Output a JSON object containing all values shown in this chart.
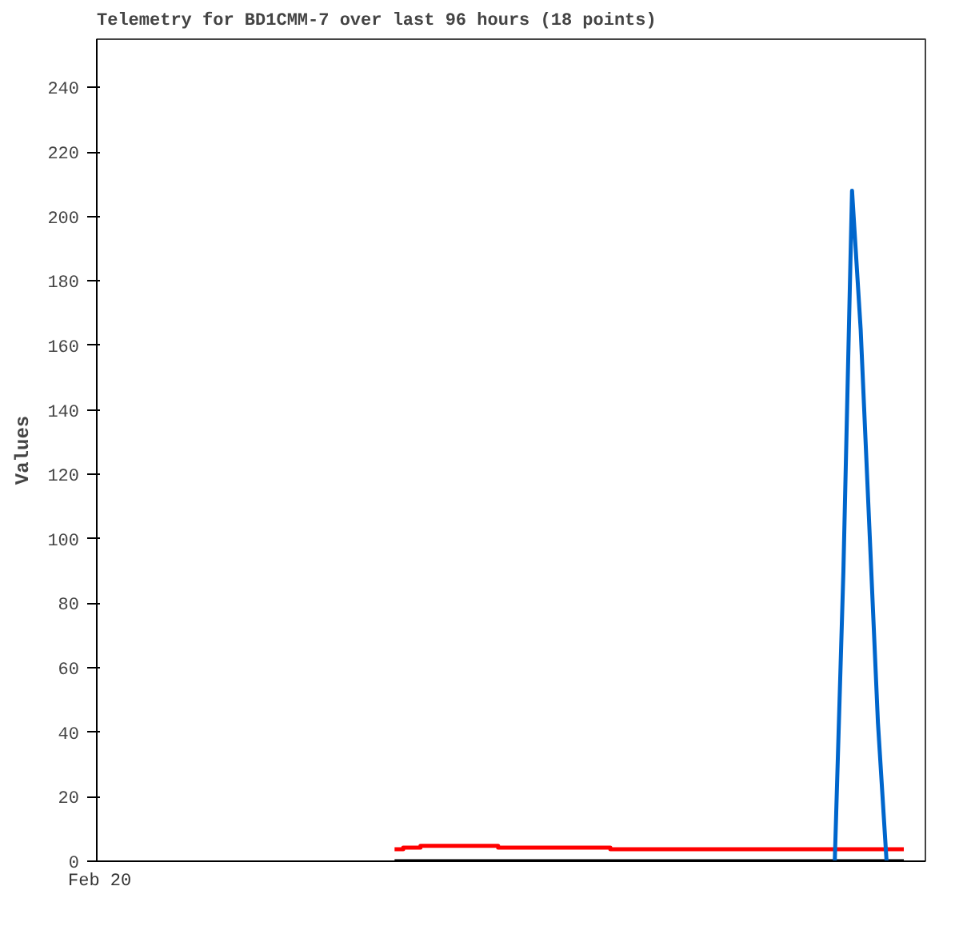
{
  "chart_data": {
    "type": "line",
    "title": "Telemetry for BD1CMM-7 over last 96 hours (18 points)",
    "ylabel": "Values",
    "categories": [
      null,
      null,
      null,
      null,
      null,
      null,
      null,
      null,
      null,
      null,
      null,
      null,
      null,
      null,
      null,
      null,
      null,
      null,
      null,
      null,
      null,
      null,
      null,
      null,
      null,
      null,
      null,
      null,
      null,
      null,
      null,
      null,
      null,
      null,
      null,
      null,
      null,
      null,
      null,
      null,
      null,
      null,
      null,
      null,
      null,
      null,
      null,
      null,
      null,
      null,
      null,
      null,
      null,
      null,
      null,
      null,
      null,
      null,
      null,
      null,
      null,
      null,
      null,
      null,
      null,
      null,
      null,
      null,
      null,
      null,
      null,
      null,
      null,
      null,
      null,
      null,
      null,
      null,
      null,
      null,
      null,
      null,
      null,
      null,
      null,
      null,
      null,
      null,
      null,
      null,
      null,
      null,
      null,
      null,
      null,
      null
    ],
    "ylim": [
      0,
      255
    ],
    "yticks": [
      0,
      20,
      40,
      60,
      80,
      100,
      120,
      140,
      160,
      180,
      200,
      220,
      240
    ],
    "grid": false,
    "annotations": [
      "Feb 20"
    ],
    "series": [
      {
        "color": "#000000",
        "values": [
          null,
          null,
          null,
          null,
          null,
          null,
          null,
          null,
          null,
          null,
          null,
          null,
          null,
          null,
          null,
          null,
          null,
          null,
          null,
          null,
          null,
          null,
          null,
          null,
          null,
          null,
          null,
          null,
          null,
          null,
          null,
          null,
          null,
          null,
          0,
          0,
          0,
          0,
          0,
          0,
          0,
          0,
          0,
          0,
          0,
          0,
          0,
          0,
          0,
          0,
          0,
          0,
          0,
          0,
          0,
          0,
          0,
          0,
          0,
          0,
          0,
          0,
          0,
          0,
          0,
          0,
          0,
          0,
          0,
          0,
          0,
          0,
          0,
          0,
          0,
          0,
          0,
          0,
          0,
          0,
          0,
          0,
          0,
          0,
          0,
          0,
          0,
          0,
          0,
          0,
          0,
          0,
          0,
          0,
          null,
          null
        ]
      },
      {
        "type": "step",
        "color": "#ff0000",
        "values": [
          null,
          null,
          null,
          null,
          null,
          null,
          null,
          null,
          null,
          null,
          null,
          null,
          null,
          null,
          null,
          null,
          null,
          null,
          null,
          null,
          null,
          null,
          null,
          null,
          null,
          null,
          null,
          null,
          null,
          null,
          null,
          null,
          null,
          null,
          3.7,
          4.2,
          4.2,
          4.8,
          4.8,
          4.8,
          4.8,
          4.8,
          4.8,
          4.8,
          4.8,
          4.8,
          4.2,
          4.2,
          4.2,
          4.2,
          4.2,
          4.2,
          4.2,
          4.2,
          4.2,
          4.2,
          4.2,
          4.2,
          4.2,
          3.7,
          3.7,
          3.7,
          3.7,
          3.7,
          3.7,
          3.7,
          3.7,
          3.7,
          3.7,
          3.7,
          3.7,
          3.7,
          3.7,
          3.7,
          3.7,
          3.7,
          3.7,
          3.7,
          3.7,
          3.7,
          3.7,
          3.7,
          3.7,
          3.7,
          3.7,
          3.7,
          3.7,
          3.7,
          3.7,
          3.7,
          3.7,
          3.7,
          3.7,
          3.7,
          null,
          null
        ]
      },
      {
        "type": "line",
        "color": "#0066cc",
        "values": [
          null,
          null,
          null,
          null,
          null,
          null,
          null,
          null,
          null,
          null,
          null,
          null,
          null,
          null,
          null,
          null,
          null,
          null,
          null,
          null,
          null,
          null,
          null,
          null,
          null,
          null,
          null,
          null,
          null,
          null,
          null,
          null,
          null,
          null,
          null,
          null,
          null,
          null,
          null,
          null,
          null,
          null,
          null,
          null,
          null,
          null,
          null,
          null,
          null,
          null,
          null,
          null,
          null,
          null,
          null,
          null,
          null,
          null,
          null,
          null,
          null,
          null,
          null,
          null,
          null,
          null,
          null,
          null,
          null,
          null,
          null,
          null,
          null,
          null,
          null,
          null,
          null,
          null,
          null,
          null,
          null,
          null,
          null,
          null,
          null,
          0,
          90,
          208,
          165,
          104,
          43,
          0,
          null,
          null,
          null,
          null
        ]
      }
    ]
  }
}
